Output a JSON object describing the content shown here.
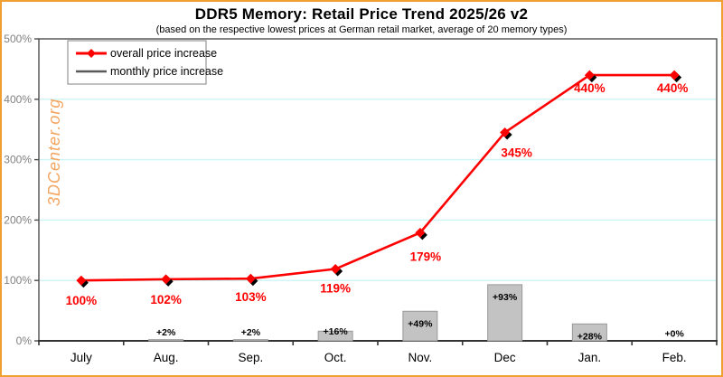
{
  "header": {
    "title": "DDR5 Memory: Retail Price Trend 2025/26 v2",
    "subtitle": "(based on the respective lowest prices at German retail market, average of 20 memory types)"
  },
  "watermark": "3DCenter.org",
  "colors": {
    "frame_border": "#f0a030",
    "line": "#fe0000",
    "line_label": "#fe0000",
    "bar_fill": "#c3c3c3",
    "bar_stroke": "#999999",
    "bar_label": "#000000",
    "grid": "#ccf5f5",
    "plot_border": "#4d4d4d",
    "axis": "#333333",
    "ytick_text": "#808080",
    "xtick_text": "#000000",
    "legend_border": "#808080",
    "legend_text": "#000000",
    "legend_line2": "#595959",
    "watermark": "#f5a55f"
  },
  "chart_data": {
    "type": "line+bar",
    "title": "DDR5 Memory: Retail Price Trend 2025/26 v2",
    "subtitle": "(based on the respective lowest prices at German retail market, average of 20 memory types)",
    "categories": [
      "July",
      "Aug.",
      "Sep.",
      "Oct.",
      "Nov.",
      "Dec",
      "Jan.",
      "Feb."
    ],
    "series": [
      {
        "name": "overall price increase",
        "type": "line",
        "color": "#fe0000",
        "values": [
          100,
          102,
          103,
          119,
          179,
          345,
          440,
          440
        ],
        "labels": [
          "100%",
          "102%",
          "103%",
          "119%",
          "179%",
          "345%",
          "440%",
          "440%"
        ]
      },
      {
        "name": "monthly price increase",
        "type": "bar",
        "color": "#c3c3c3",
        "values": [
          null,
          2,
          2,
          16,
          49,
          93,
          28,
          0
        ],
        "labels": [
          "",
          "+2%",
          "+2%",
          "+16%",
          "+49%",
          "+93%",
          "+28%",
          "+0%"
        ]
      }
    ],
    "ylim": [
      0,
      500
    ],
    "yticks": [
      0,
      100,
      200,
      300,
      400,
      500
    ],
    "ytick_labels": [
      "0%",
      "100%",
      "200%",
      "300%",
      "400%",
      "500%"
    ],
    "grid": "horizontal",
    "legend_position": "top-left"
  }
}
